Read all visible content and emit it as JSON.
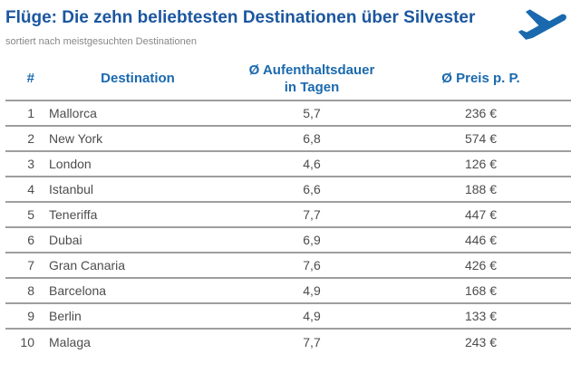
{
  "header": {
    "title": "Flüge: Die zehn beliebtesten Destinationen über Silvester",
    "subtitle": "sortiert nach meistgesuchten Destinationen",
    "plane_icon": "plane-takeoff-icon"
  },
  "colors": {
    "title_blue": "#1b579f",
    "table_header_blue": "#1a69ae",
    "row_text_gray": "#4d4d4d",
    "subtitle_gray": "#878787",
    "separator_gray": "#9e9e9e",
    "plane_blue": "#1a69ae"
  },
  "table": {
    "headers": {
      "rank": "#",
      "destination": "Destination",
      "duration_line1": "Ø Aufenthaltsdauer",
      "duration_line2": "in Tagen",
      "price": "Ø Preis p. P."
    },
    "rows": [
      {
        "rank": "1",
        "destination": "Mallorca",
        "duration": "5,7",
        "price": "236 €"
      },
      {
        "rank": "2",
        "destination": "New York",
        "duration": "6,8",
        "price": "574 €"
      },
      {
        "rank": "3",
        "destination": "London",
        "duration": "4,6",
        "price": "126 €"
      },
      {
        "rank": "4",
        "destination": "Istanbul",
        "duration": "6,6",
        "price": "188 €"
      },
      {
        "rank": "5",
        "destination": "Teneriffa",
        "duration": "7,7",
        "price": "447 €"
      },
      {
        "rank": "6",
        "destination": "Dubai",
        "duration": "6,9",
        "price": "446 €"
      },
      {
        "rank": "7",
        "destination": "Gran Canaria",
        "duration": "7,6",
        "price": "426 €"
      },
      {
        "rank": "8",
        "destination": "Barcelona",
        "duration": "4,9",
        "price": "168 €"
      },
      {
        "rank": "9",
        "destination": "Berlin",
        "duration": "4,9",
        "price": "133 €"
      },
      {
        "rank": "10",
        "destination": "Malaga",
        "duration": "7,7",
        "price": "243 €"
      }
    ]
  },
  "chart_data": {
    "type": "table",
    "title": "Flüge: Die zehn beliebtesten Destinationen über Silvester",
    "subtitle": "sortiert nach meistgesuchten Destinationen",
    "columns": [
      "#",
      "Destination",
      "Ø Aufenthaltsdauer in Tagen",
      "Ø Preis p. P."
    ],
    "rows": [
      [
        1,
        "Mallorca",
        5.7,
        236
      ],
      [
        2,
        "New York",
        6.8,
        574
      ],
      [
        3,
        "London",
        4.6,
        126
      ],
      [
        4,
        "Istanbul",
        6.6,
        188
      ],
      [
        5,
        "Teneriffa",
        7.7,
        447
      ],
      [
        6,
        "Dubai",
        6.9,
        446
      ],
      [
        7,
        "Gran Canaria",
        7.6,
        426
      ],
      [
        8,
        "Barcelona",
        4.9,
        168
      ],
      [
        9,
        "Berlin",
        4.9,
        133
      ],
      [
        10,
        "Malaga",
        7.7,
        243
      ]
    ],
    "units": {
      "duration": "Tage (Dezimalkomma)",
      "price": "€"
    },
    "layout": {
      "grid": "horizontal separators only",
      "header_color": "#1a69ae"
    }
  }
}
